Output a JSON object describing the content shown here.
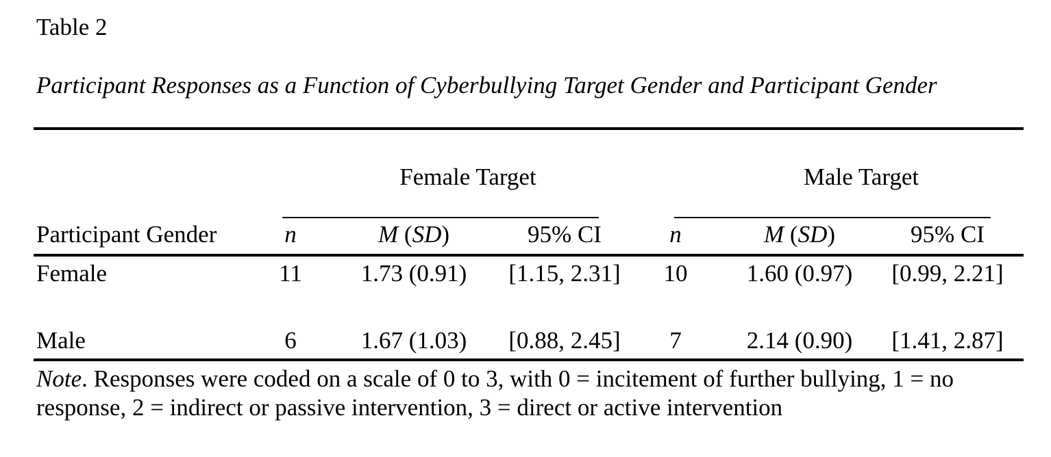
{
  "table_number": "Table 2",
  "table_title": "Participant Responses as a Function of Cyberbullying Target Gender and Participant Gender",
  "group_headers": {
    "female_target": "Female Target",
    "male_target": "Male Target"
  },
  "column_headers": {
    "participant_gender": "Participant Gender",
    "n": "n",
    "m": "M",
    "sd": "SD",
    "ci": "95% CI"
  },
  "rows": [
    {
      "label": "Female",
      "female_target": {
        "n": "11",
        "msd": "1.73 (0.91)",
        "ci": "[1.15, 2.31]"
      },
      "male_target": {
        "n": "10",
        "msd": "1.60 (0.97)",
        "ci": "[0.99, 2.21]"
      }
    },
    {
      "label": "Male",
      "female_target": {
        "n": "6",
        "msd": "1.67 (1.03)",
        "ci": "[0.88, 2.45]"
      },
      "male_target": {
        "n": "7",
        "msd": "2.14 (0.90)",
        "ci": "[1.41, 2.87]"
      }
    }
  ],
  "note": {
    "label": "Note",
    "line1": ". Responses were coded on a scale of 0 to 3, with 0 = incitement of further bullying, 1 = no",
    "line2": "response, 2 = indirect or passive intervention, 3 = direct or active intervention"
  }
}
